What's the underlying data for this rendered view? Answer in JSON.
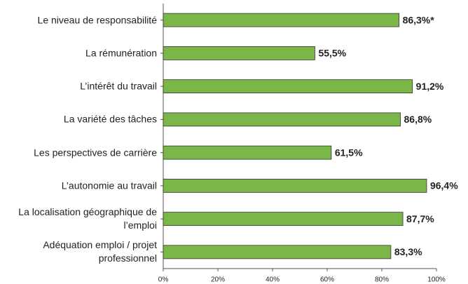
{
  "chart_data": {
    "type": "bar",
    "orientation": "horizontal",
    "categories": [
      "Le niveau de responsabilité",
      "La rémunération",
      "L’intérêt du travail",
      "La variété des tâches",
      "Les perspectives de carrière",
      "L’autonomie au travail",
      "La localisation géographique de l’emploi",
      "Adéquation emploi / projet professionnel"
    ],
    "values": [
      86.3,
      55.5,
      91.2,
      86.8,
      61.5,
      96.4,
      87.7,
      83.3
    ],
    "value_labels": [
      "86,3%*",
      "55,5%",
      "91,2%",
      "86,8%",
      "61,5%",
      "96,4%",
      "87,7%",
      "83,3%"
    ],
    "color": "#7ab648",
    "xlim": [
      0,
      100
    ],
    "xticks": [
      {
        "value": 0,
        "label": "0%"
      },
      {
        "value": 20,
        "label": "20%"
      },
      {
        "value": 40,
        "label": "40%"
      },
      {
        "value": 60,
        "label": "60%"
      },
      {
        "value": 80,
        "label": "80%"
      },
      {
        "value": 100,
        "label": "100%"
      }
    ]
  }
}
